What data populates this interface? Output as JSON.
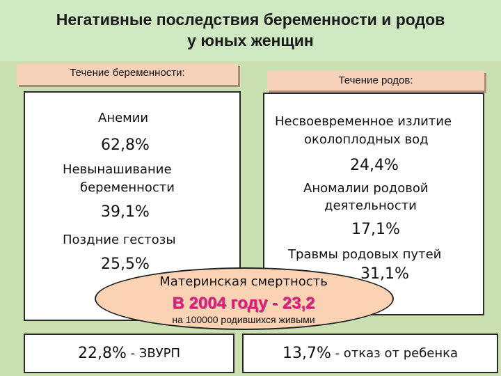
{
  "title": {
    "line1": "Негативные последствия беременности и родов",
    "line2": "у юных женщин"
  },
  "pregnancy": {
    "label": "Течение беременности:",
    "items": [
      {
        "name_lines": [
          "Анемии"
        ],
        "value": "62,8%"
      },
      {
        "name_lines": [
          "Невынашивание",
          "беременности"
        ],
        "value": "39,1%"
      },
      {
        "name_lines": [
          "Поздние гестозы"
        ],
        "value": "25,5%"
      }
    ]
  },
  "labor": {
    "label": "Течение родов:",
    "items": [
      {
        "name_lines": [
          "Несвоевременное излитие",
          "околоплодных вод"
        ],
        "value": "24,4%"
      },
      {
        "name_lines": [
          "Аномалии родовой",
          "деятельности"
        ],
        "value": "17,1%"
      },
      {
        "name_lines": [
          "Травмы родовых путей"
        ],
        "value": "31,1%"
      }
    ]
  },
  "mortality": {
    "label": "Материнская смертность",
    "value": "В 2004 году - 23,2",
    "note": "на 100000 родившихся живыми"
  },
  "footer": {
    "left_value": "22,8%",
    "left_text": " - ЗВУРП",
    "right_value": "13,7%",
    "right_text": " - отказ от ребенка"
  }
}
